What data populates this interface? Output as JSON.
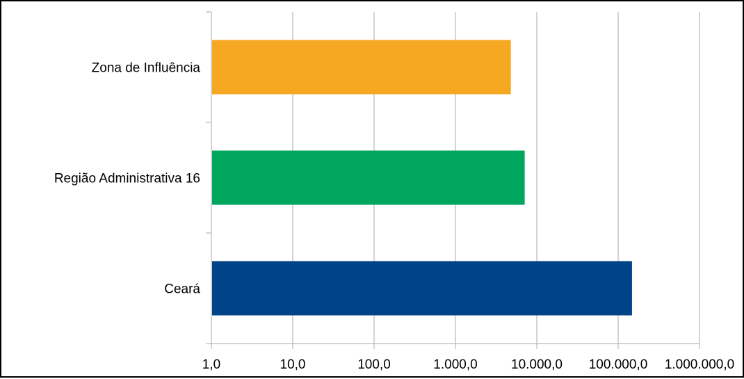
{
  "chart_data": {
    "type": "bar",
    "orientation": "horizontal",
    "x_scale": "log",
    "xlim": [
      1,
      1000000
    ],
    "x_ticks": [
      1,
      10,
      100,
      1000,
      10000,
      100000,
      1000000
    ],
    "x_tick_labels": [
      "1,0",
      "10,0",
      "100,0",
      "1.000,0",
      "10.000,0",
      "100.000,0",
      "1.000.000,0"
    ],
    "categories": [
      "Zona de Influência",
      "Região Administrativa 16",
      "Ceará"
    ],
    "values": [
      4800,
      7100,
      148000
    ],
    "colors": [
      "#F7A823",
      "#00A65D",
      "#004386"
    ],
    "grid": true,
    "title": "",
    "xlabel": "",
    "ylabel": ""
  }
}
